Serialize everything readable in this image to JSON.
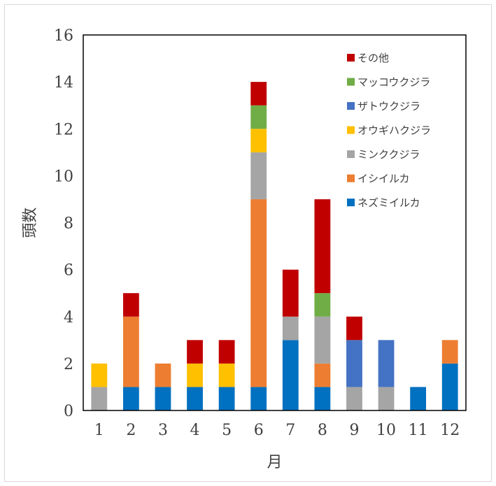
{
  "chart_data": {
    "type": "bar",
    "stacked": true,
    "xlabel": "月",
    "ylabel": "頭数",
    "ylim": [
      0,
      16
    ],
    "yticks": [
      "0",
      "2",
      "4",
      "6",
      "8",
      "10",
      "12",
      "14",
      "16"
    ],
    "categories": [
      "1",
      "2",
      "3",
      "4",
      "5",
      "6",
      "7",
      "8",
      "9",
      "10",
      "11",
      "12"
    ],
    "legend_position": "top-right",
    "grid": false,
    "series": [
      {
        "name": "ネズミイルカ",
        "color": "#0070c0",
        "values": [
          0,
          1,
          1,
          1,
          1,
          1,
          3,
          1,
          0,
          0,
          1,
          2
        ]
      },
      {
        "name": "イシイルカ",
        "color": "#ed7d31",
        "values": [
          0,
          3,
          1,
          0,
          0,
          8,
          0,
          1,
          0,
          0,
          0,
          1
        ]
      },
      {
        "name": "ミンククジラ",
        "color": "#a5a5a5",
        "values": [
          1,
          0,
          0,
          0,
          0,
          2,
          1,
          2,
          1,
          1,
          0,
          0
        ]
      },
      {
        "name": "オウギハクジラ",
        "color": "#ffc000",
        "values": [
          1,
          0,
          0,
          1,
          1,
          1,
          0,
          0,
          0,
          0,
          0,
          0
        ]
      },
      {
        "name": "ザトウクジラ",
        "color": "#4472c4",
        "values": [
          0,
          0,
          0,
          0,
          0,
          0,
          0,
          0,
          2,
          2,
          0,
          0
        ]
      },
      {
        "name": "マッコウクジラ",
        "color": "#70ad47",
        "values": [
          0,
          0,
          0,
          0,
          0,
          1,
          0,
          1,
          0,
          0,
          0,
          0
        ]
      },
      {
        "name": "その他",
        "color": "#c00000",
        "values": [
          0,
          1,
          0,
          1,
          1,
          1,
          2,
          4,
          1,
          0,
          0,
          0
        ]
      }
    ]
  }
}
